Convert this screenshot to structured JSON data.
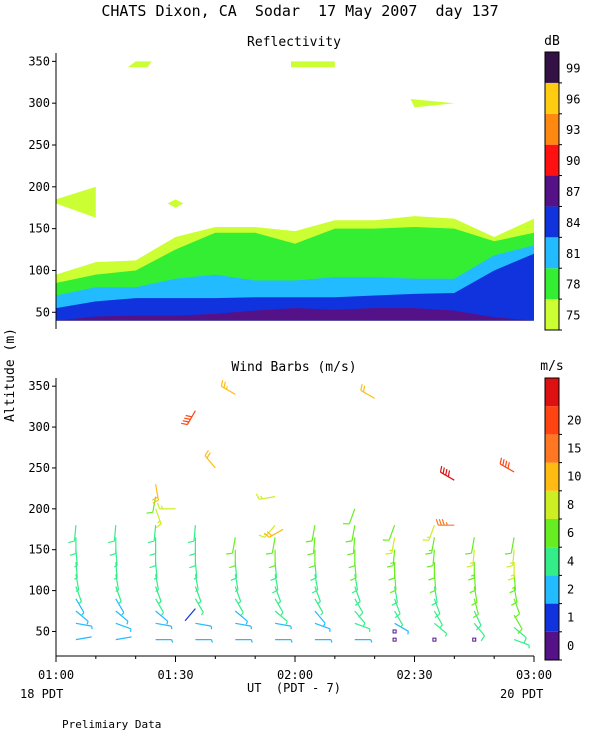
{
  "page_title": "CHATS Dixon, CA  Sodar  17 May 2007  day 137",
  "y_axis_label": "Altitude (m)",
  "x_axis": {
    "label": "UT  (PDT - 7)",
    "tick_labels": [
      "01:00",
      "01:30",
      "02:00",
      "02:30",
      "03:00"
    ],
    "left_note": "18 PDT",
    "right_note": "20 PDT",
    "range": [
      "01:00",
      "03:00"
    ]
  },
  "footer_note": "Prelimiary Data",
  "chart_data": [
    {
      "type": "area",
      "title": "Reflectivity",
      "ylabel": "Altitude (m)",
      "ylim": [
        30,
        360
      ],
      "y_ticks": [
        50,
        100,
        150,
        200,
        250,
        300,
        350
      ],
      "x_times": [
        "01:00",
        "01:10",
        "01:20",
        "01:30",
        "01:40",
        "01:50",
        "02:00",
        "02:10",
        "02:20",
        "02:30",
        "02:40",
        "02:50",
        "03:00"
      ],
      "colorbar": {
        "unit": "dB",
        "levels": [
          75,
          78,
          81,
          84,
          87,
          90,
          93,
          96,
          99
        ],
        "colors": [
          "#ccff33",
          "#33ee33",
          "#22bbff",
          "#1133dd",
          "#551188",
          "#ff1111",
          "#ff8811",
          "#ffcc11",
          "#331144"
        ]
      },
      "layers": [
        {
          "level": 75,
          "top": [
            95,
            110,
            112,
            140,
            152,
            152,
            147,
            160,
            160,
            165,
            162,
            140,
            162
          ]
        },
        {
          "level": 78,
          "top": [
            85,
            95,
            100,
            125,
            145,
            145,
            132,
            150,
            150,
            152,
            150,
            135,
            145
          ]
        },
        {
          "level": 81,
          "top": [
            70,
            80,
            80,
            90,
            95,
            88,
            88,
            92,
            92,
            90,
            90,
            118,
            130
          ]
        },
        {
          "level": 84,
          "top": [
            55,
            63,
            67,
            67,
            67,
            68,
            68,
            68,
            70,
            72,
            73,
            100,
            120
          ]
        },
        {
          "level": 87,
          "top": [
            40,
            45,
            46,
            46,
            48,
            52,
            55,
            53,
            55,
            55,
            52,
            44,
            40
          ]
        }
      ],
      "bottom": 40,
      "patches": [
        {
          "level": 75,
          "x": [
            "01:00",
            "01:10",
            "01:10",
            "01:00"
          ],
          "y": [
            185,
            200,
            163,
            180
          ]
        },
        {
          "level": 75,
          "x": [
            "01:28",
            "01:30",
            "01:32",
            "01:30"
          ],
          "y": [
            180,
            185,
            180,
            175
          ]
        },
        {
          "level": 75,
          "x": [
            "01:18",
            "01:20",
            "01:24",
            "01:23"
          ],
          "y": [
            343,
            350,
            350,
            343
          ]
        },
        {
          "level": 75,
          "x": [
            "01:59",
            "02:10",
            "02:10",
            "01:59"
          ],
          "y": [
            343,
            343,
            350,
            350
          ]
        },
        {
          "level": 75,
          "x": [
            "02:29",
            "02:40",
            "02:30"
          ],
          "y": [
            305,
            300,
            295
          ]
        },
        {
          "level": 78,
          "x": [
            "02:07",
            "02:30",
            "02:22"
          ],
          "y": [
            140,
            148,
            140
          ]
        }
      ]
    },
    {
      "type": "scatter",
      "title": "Wind Barbs (m/s)",
      "ylabel": "Altitude (m)",
      "ylim": [
        20,
        360
      ],
      "y_ticks": [
        50,
        100,
        150,
        200,
        250,
        300,
        350
      ],
      "colorbar": {
        "unit": "m/s",
        "levels": [
          0,
          1,
          2,
          4,
          6,
          8,
          10,
          15,
          20
        ],
        "colors": [
          "#551188",
          "#1133dd",
          "#22bbff",
          "#33ee88",
          "#66ee22",
          "#ccee22",
          "#ffbb11",
          "#ff7722",
          "#ff4411",
          "#dd1111"
        ]
      },
      "barbs": [
        {
          "t": "01:05",
          "z": [
            40,
            60,
            75,
            90,
            105,
            120,
            135,
            150,
            165,
            180
          ],
          "spd": [
            2.3,
            2.5,
            3,
            3.5,
            4,
            4,
            4.2,
            4.5,
            5,
            5
          ],
          "dir": [
            80,
            100,
            130,
            150,
            160,
            170,
            175,
            175,
            180,
            185
          ]
        },
        {
          "t": "01:15",
          "z": [
            40,
            60,
            75,
            90,
            105,
            120,
            135,
            150,
            165,
            180
          ],
          "spd": [
            2.3,
            2.5,
            3,
            3.5,
            4,
            4,
            4.2,
            4.5,
            5,
            5
          ],
          "dir": [
            80,
            110,
            130,
            150,
            160,
            170,
            175,
            175,
            180,
            185
          ]
        },
        {
          "t": "01:25",
          "z": [
            40,
            60,
            75,
            90,
            105,
            120,
            135,
            150,
            165,
            180,
            200,
            215,
            230
          ],
          "spd": [
            3.5,
            3.5,
            3.5,
            4,
            4,
            4.5,
            4.5,
            5,
            5,
            5.5,
            8,
            7,
            12
          ],
          "dir": [
            90,
            100,
            130,
            150,
            160,
            170,
            175,
            180,
            180,
            185,
            160,
            190,
            170
          ]
        },
        {
          "t": "01:30",
          "z": [
            200
          ],
          "spd": [
            8.5
          ],
          "dir": [
            270
          ]
        },
        {
          "t": "01:35",
          "z": [
            40,
            60,
            78,
            90,
            105,
            120,
            135,
            150,
            165,
            180,
            320
          ],
          "spd": [
            3.5,
            3.5,
            1.5,
            4,
            4,
            4.5,
            4.5,
            5,
            5,
            5.5,
            21
          ],
          "dir": [
            90,
            100,
            220,
            150,
            160,
            170,
            175,
            180,
            180,
            185,
            210
          ]
        },
        {
          "t": "01:40",
          "z": [
            250
          ],
          "spd": [
            12
          ],
          "dir": [
            320
          ]
        },
        {
          "t": "01:45",
          "z": [
            40,
            60,
            75,
            90,
            105,
            120,
            135,
            150,
            165,
            340
          ],
          "spd": [
            2.5,
            3.5,
            3.5,
            4,
            4,
            4.5,
            5,
            6,
            7,
            13
          ],
          "dir": [
            90,
            100,
            130,
            150,
            160,
            170,
            175,
            180,
            190,
            300
          ]
        },
        {
          "t": "01:55",
          "z": [
            40,
            60,
            75,
            90,
            105,
            120,
            135,
            150,
            165,
            180,
            215
          ],
          "spd": [
            2.5,
            3.5,
            4,
            4,
            4.5,
            5,
            5,
            6,
            7,
            8,
            9
          ],
          "dir": [
            90,
            100,
            130,
            150,
            160,
            170,
            175,
            180,
            190,
            220,
            260
          ]
        },
        {
          "t": "01:57",
          "z": [
            175
          ],
          "spd": [
            12
          ],
          "dir": [
            240
          ]
        },
        {
          "t": "02:05",
          "z": [
            40,
            60,
            75,
            90,
            105,
            120,
            135,
            150,
            165,
            180
          ],
          "spd": [
            2.5,
            2.5,
            3.5,
            4,
            4.5,
            5,
            5.5,
            6,
            6.5,
            7
          ],
          "dir": [
            90,
            110,
            140,
            150,
            160,
            170,
            175,
            180,
            185,
            190
          ]
        },
        {
          "t": "02:15",
          "z": [
            40,
            60,
            75,
            90,
            105,
            120,
            135,
            150,
            165,
            180,
            200
          ],
          "spd": [
            3.5,
            4,
            4.5,
            5,
            5,
            5.5,
            6,
            6,
            7,
            7,
            7
          ],
          "dir": [
            90,
            110,
            140,
            150,
            160,
            170,
            175,
            180,
            185,
            190,
            200
          ]
        },
        {
          "t": "02:20",
          "z": [
            335
          ],
          "spd": [
            11
          ],
          "dir": [
            300
          ]
        },
        {
          "t": "02:25",
          "z": [
            40,
            50,
            60,
            75,
            90,
            105,
            120,
            135,
            150,
            165,
            180
          ],
          "spd": [
            0,
            0,
            3.5,
            4,
            5,
            5.5,
            6,
            7,
            7.5,
            8,
            7
          ],
          "dir": [
            0,
            0,
            120,
            150,
            160,
            170,
            175,
            180,
            185,
            190,
            200
          ]
        },
        {
          "t": "02:35",
          "z": [
            40,
            60,
            75,
            90,
            105,
            120,
            135,
            150,
            165,
            180
          ],
          "spd": [
            0,
            4,
            4.5,
            5,
            5.5,
            6,
            6.5,
            7,
            7.5,
            8
          ],
          "dir": [
            0,
            130,
            150,
            160,
            170,
            175,
            180,
            185,
            190,
            200
          ]
        },
        {
          "t": "02:40",
          "z": [
            180,
            235
          ],
          "spd": [
            18,
            22
          ],
          "dir": [
            270,
            300
          ]
        },
        {
          "t": "02:45",
          "z": [
            40,
            60,
            75,
            90,
            105,
            120,
            135,
            150,
            165
          ],
          "spd": [
            0,
            5,
            5.5,
            6,
            6.5,
            7,
            7.5,
            8,
            7
          ],
          "dir": [
            0,
            140,
            155,
            165,
            170,
            175,
            180,
            185,
            190
          ]
        },
        {
          "t": "02:55",
          "z": [
            40,
            55,
            70,
            90,
            105,
            120,
            135,
            150,
            165,
            245
          ],
          "spd": [
            4.5,
            5.5,
            6,
            6.5,
            7,
            7.5,
            8,
            8,
            7,
            20
          ],
          "dir": [
            110,
            130,
            150,
            160,
            170,
            175,
            180,
            185,
            190,
            300
          ]
        }
      ]
    }
  ]
}
